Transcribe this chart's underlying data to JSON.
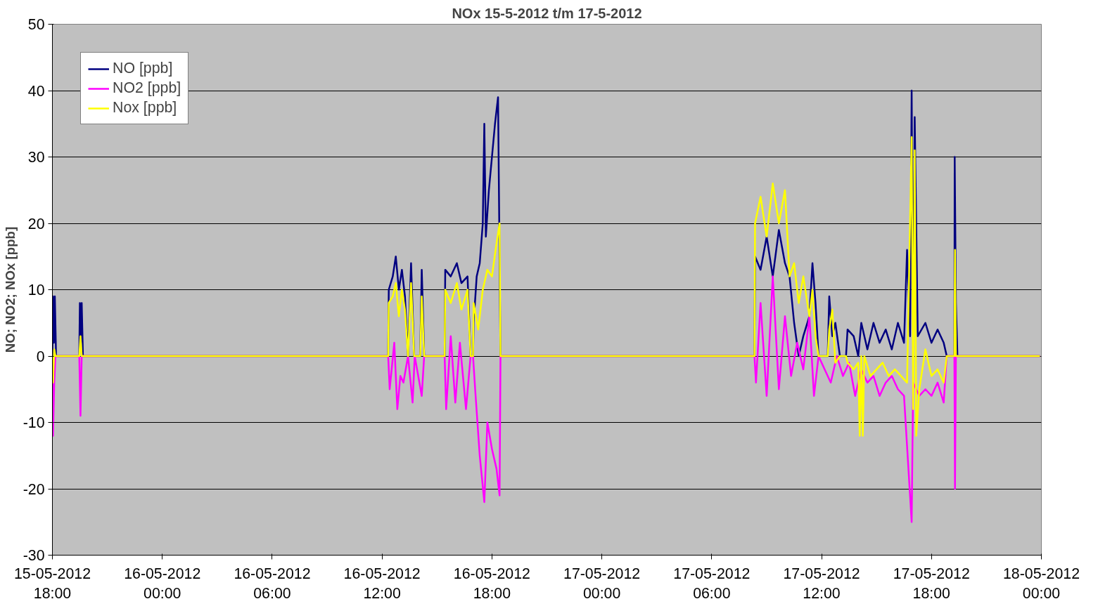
{
  "chart_data": {
    "type": "line",
    "title": "NOx 15-5-2012 t/m 17-5-2012",
    "ylabel": "NO; NO2; NOx [ppb]",
    "xlim": [
      "2012-05-15T18:00",
      "2012-05-18T00:00"
    ],
    "xticks": [
      {
        "value": "2012-05-15T18:00",
        "label": "15-05-2012 18:00"
      },
      {
        "value": "2012-05-16T00:00",
        "label": "16-05-2012 00:00"
      },
      {
        "value": "2012-05-16T06:00",
        "label": "16-05-2012 06:00"
      },
      {
        "value": "2012-05-16T12:00",
        "label": "16-05-2012 12:00"
      },
      {
        "value": "2012-05-16T18:00",
        "label": "16-05-2012 18:00"
      },
      {
        "value": "2012-05-17T00:00",
        "label": "17-05-2012 00:00"
      },
      {
        "value": "2012-05-17T06:00",
        "label": "17-05-2012 06:00"
      },
      {
        "value": "2012-05-17T12:00",
        "label": "17-05-2012 12:00"
      },
      {
        "value": "2012-05-17T18:00",
        "label": "17-05-2012 18:00"
      },
      {
        "value": "2012-05-18T00:00",
        "label": "18-05-2012 00:00"
      }
    ],
    "ylim": [
      -30,
      50
    ],
    "yticks": [
      -30,
      -20,
      -10,
      0,
      10,
      20,
      30,
      40,
      50
    ],
    "grid": "y",
    "legend": "top left",
    "line_style": "solid",
    "marker": "none",
    "series": [
      {
        "name": "NO [ppb]",
        "color": "#000080",
        "x": [
          "2012-05-15T18:00",
          "2012-05-15T18:02",
          "2012-05-15T18:05",
          "2012-05-15T18:08",
          "2012-05-15T18:12",
          "2012-05-15T19:28",
          "2012-05-15T19:30",
          "2012-05-15T19:33",
          "2012-05-15T19:36",
          "2012-05-15T19:40",
          "2012-05-16T12:20",
          "2012-05-16T12:22",
          "2012-05-16T12:35",
          "2012-05-16T12:45",
          "2012-05-16T12:55",
          "2012-05-16T13:05",
          "2012-05-16T13:15",
          "2012-05-16T13:25",
          "2012-05-16T13:35",
          "2012-05-16T13:45",
          "2012-05-16T14:05",
          "2012-05-16T14:10",
          "2012-05-16T14:18",
          "2012-05-16T15:25",
          "2012-05-16T15:27",
          "2012-05-16T15:45",
          "2012-05-16T16:05",
          "2012-05-16T16:20",
          "2012-05-16T16:40",
          "2012-05-16T16:50",
          "2012-05-16T16:58",
          "2012-05-16T17:00",
          "2012-05-16T17:10",
          "2012-05-16T17:20",
          "2012-05-16T17:30",
          "2012-05-16T17:35",
          "2012-05-16T17:40",
          "2012-05-16T17:50",
          "2012-05-16T18:00",
          "2012-05-16T18:10",
          "2012-05-16T18:20",
          "2012-05-16T18:28",
          "2012-05-17T08:20",
          "2012-05-17T08:22",
          "2012-05-17T08:40",
          "2012-05-17T09:00",
          "2012-05-17T09:20",
          "2012-05-17T09:40",
          "2012-05-17T10:00",
          "2012-05-17T10:15",
          "2012-05-17T10:30",
          "2012-05-17T10:45",
          "2012-05-17T11:00",
          "2012-05-17T11:20",
          "2012-05-17T11:30",
          "2012-05-17T11:40",
          "2012-05-17T11:50",
          "2012-05-17T12:20",
          "2012-05-17T12:25",
          "2012-05-17T12:35",
          "2012-05-17T12:45",
          "2012-05-17T13:00",
          "2012-05-17T13:20",
          "2012-05-17T13:25",
          "2012-05-17T13:45",
          "2012-05-17T14:00",
          "2012-05-17T14:10",
          "2012-05-17T14:30",
          "2012-05-17T14:50",
          "2012-05-17T15:10",
          "2012-05-17T15:30",
          "2012-05-17T15:50",
          "2012-05-17T16:10",
          "2012-05-17T16:30",
          "2012-05-17T16:40",
          "2012-05-17T16:50",
          "2012-05-17T16:55",
          "2012-05-17T17:00",
          "2012-05-17T17:05",
          "2012-05-17T17:15",
          "2012-05-17T17:40",
          "2012-05-17T18:00",
          "2012-05-17T18:20",
          "2012-05-17T18:40",
          "2012-05-17T18:50",
          "2012-05-17T19:15",
          "2012-05-17T19:16",
          "2012-05-17T19:20",
          "2012-05-17T19:25",
          "2012-05-17T23:55"
        ],
        "values": [
          0,
          9,
          2,
          9,
          0,
          0,
          8,
          2,
          8,
          0,
          0,
          10,
          12,
          15,
          10,
          13,
          9,
          0,
          14,
          0,
          0,
          13,
          0,
          0,
          13,
          12,
          14,
          11,
          12,
          0,
          0,
          5,
          12,
          14,
          20,
          35,
          18,
          25,
          30,
          35,
          39,
          0,
          0,
          15,
          13,
          18,
          12,
          19,
          14,
          12,
          5,
          0,
          3,
          6,
          14,
          8,
          0,
          0,
          9,
          3,
          5,
          0,
          0,
          4,
          3,
          0,
          5,
          1,
          5,
          2,
          4,
          1,
          5,
          2,
          16,
          3,
          40,
          3,
          36,
          3,
          5,
          2,
          4,
          2,
          0,
          0,
          30,
          8,
          0,
          0
        ]
      },
      {
        "name": "NO2 [ppb]",
        "color": "#ff00ff",
        "x": [
          "2012-05-15T18:00",
          "2012-05-15T18:02",
          "2012-05-15T18:06",
          "2012-05-15T18:10",
          "2012-05-15T19:28",
          "2012-05-15T19:32",
          "2012-05-15T19:36",
          "2012-05-16T12:20",
          "2012-05-16T12:25",
          "2012-05-16T12:40",
          "2012-05-16T12:50",
          "2012-05-16T13:00",
          "2012-05-16T13:10",
          "2012-05-16T13:25",
          "2012-05-16T13:40",
          "2012-05-16T13:47",
          "2012-05-16T14:10",
          "2012-05-16T14:18",
          "2012-05-16T15:25",
          "2012-05-16T15:30",
          "2012-05-16T15:45",
          "2012-05-16T16:00",
          "2012-05-16T16:15",
          "2012-05-16T16:35",
          "2012-05-16T16:50",
          "2012-05-16T16:58",
          "2012-05-16T17:05",
          "2012-05-16T17:20",
          "2012-05-16T17:35",
          "2012-05-16T17:45",
          "2012-05-16T18:00",
          "2012-05-16T18:15",
          "2012-05-16T18:25",
          "2012-05-16T18:28",
          "2012-05-17T08:20",
          "2012-05-17T08:25",
          "2012-05-17T08:40",
          "2012-05-17T09:00",
          "2012-05-17T09:20",
          "2012-05-17T09:40",
          "2012-05-17T10:00",
          "2012-05-17T10:20",
          "2012-05-17T10:40",
          "2012-05-17T11:00",
          "2012-05-17T11:20",
          "2012-05-17T11:35",
          "2012-05-17T11:50",
          "2012-05-17T12:10",
          "2012-05-17T12:30",
          "2012-05-17T12:50",
          "2012-05-17T13:10",
          "2012-05-17T13:30",
          "2012-05-17T13:50",
          "2012-05-17T14:10",
          "2012-05-17T14:30",
          "2012-05-17T14:50",
          "2012-05-17T15:10",
          "2012-05-17T15:30",
          "2012-05-17T15:50",
          "2012-05-17T16:10",
          "2012-05-17T16:30",
          "2012-05-17T16:55",
          "2012-05-17T17:00",
          "2012-05-17T17:20",
          "2012-05-17T17:40",
          "2012-05-17T18:00",
          "2012-05-17T18:20",
          "2012-05-17T18:40",
          "2012-05-17T18:50",
          "2012-05-17T19:15",
          "2012-05-17T19:17",
          "2012-05-17T19:20",
          "2012-05-17T23:55"
        ],
        "values": [
          0,
          -12,
          -4,
          0,
          0,
          -9,
          0,
          0,
          -5,
          2,
          -8,
          -3,
          -4,
          0,
          -7,
          0,
          -6,
          0,
          0,
          -8,
          3,
          -7,
          2,
          -8,
          0,
          0,
          -5,
          -15,
          -22,
          -10,
          -14,
          -17,
          -21,
          0,
          0,
          -4,
          8,
          -6,
          12,
          -5,
          6,
          -3,
          2,
          -2,
          6,
          -6,
          0,
          -2,
          -4,
          0,
          -3,
          -1,
          -6,
          -2,
          -4,
          -3,
          -6,
          -4,
          -3,
          -5,
          -6,
          -25,
          -4,
          -6,
          -5,
          -6,
          -4,
          -7,
          0,
          0,
          -20,
          0,
          0
        ]
      },
      {
        "name": "Nox [ppb]",
        "color": "#ffff00",
        "x": [
          "2012-05-15T18:00",
          "2012-05-15T18:02",
          "2012-05-15T18:06",
          "2012-05-15T18:10",
          "2012-05-15T19:28",
          "2012-05-15T19:32",
          "2012-05-15T19:36",
          "2012-05-16T12:20",
          "2012-05-16T12:22",
          "2012-05-16T12:35",
          "2012-05-16T12:45",
          "2012-05-16T12:55",
          "2012-05-16T13:05",
          "2012-05-16T13:15",
          "2012-05-16T13:25",
          "2012-05-16T13:35",
          "2012-05-16T13:45",
          "2012-05-16T14:05",
          "2012-05-16T14:10",
          "2012-05-16T14:18",
          "2012-05-16T15:25",
          "2012-05-16T15:27",
          "2012-05-16T15:45",
          "2012-05-16T16:05",
          "2012-05-16T16:20",
          "2012-05-16T16:40",
          "2012-05-16T16:50",
          "2012-05-16T16:58",
          "2012-05-16T17:00",
          "2012-05-16T17:15",
          "2012-05-16T17:30",
          "2012-05-16T17:45",
          "2012-05-16T18:00",
          "2012-05-16T18:15",
          "2012-05-16T18:25",
          "2012-05-16T18:28",
          "2012-05-17T08:20",
          "2012-05-17T08:22",
          "2012-05-17T08:40",
          "2012-05-17T09:00",
          "2012-05-17T09:20",
          "2012-05-17T09:40",
          "2012-05-17T10:00",
          "2012-05-17T10:15",
          "2012-05-17T10:30",
          "2012-05-17T10:45",
          "2012-05-17T11:00",
          "2012-05-17T11:20",
          "2012-05-17T11:30",
          "2012-05-17T11:40",
          "2012-05-17T11:50",
          "2012-05-17T12:20",
          "2012-05-17T12:25",
          "2012-05-17T12:35",
          "2012-05-17T12:45",
          "2012-05-17T13:00",
          "2012-05-17T13:20",
          "2012-05-17T13:25",
          "2012-05-17T13:45",
          "2012-05-17T14:00",
          "2012-05-17T14:05",
          "2012-05-17T14:10",
          "2012-05-17T14:15",
          "2012-05-17T14:20",
          "2012-05-17T14:40",
          "2012-05-17T15:00",
          "2012-05-17T15:20",
          "2012-05-17T15:40",
          "2012-05-17T16:00",
          "2012-05-17T16:20",
          "2012-05-17T16:40",
          "2012-05-17T16:55",
          "2012-05-17T17:00",
          "2012-05-17T17:05",
          "2012-05-17T17:10",
          "2012-05-17T17:20",
          "2012-05-17T17:40",
          "2012-05-17T18:00",
          "2012-05-17T18:20",
          "2012-05-17T18:40",
          "2012-05-17T18:50",
          "2012-05-17T19:15",
          "2012-05-17T19:17",
          "2012-05-17T19:20",
          "2012-05-17T23:55"
        ],
        "values": [
          0,
          -4,
          1,
          0,
          0,
          3,
          0,
          0,
          8,
          9,
          11,
          6,
          10,
          7,
          0,
          11,
          0,
          0,
          9,
          0,
          0,
          10,
          8,
          11,
          7,
          10,
          0,
          0,
          8,
          4,
          10,
          13,
          12,
          17,
          20,
          0,
          0,
          20,
          24,
          18,
          26,
          20,
          25,
          12,
          14,
          8,
          12,
          6,
          10,
          3,
          0,
          0,
          4,
          7,
          -1,
          0,
          0,
          -1,
          -2,
          -1,
          -12,
          0,
          -12,
          0,
          -3,
          -2,
          -1,
          -3,
          -2,
          -3,
          -4,
          33,
          -8,
          31,
          -12,
          -5,
          1,
          -3,
          -2,
          -4,
          0,
          0,
          16,
          0,
          0
        ]
      }
    ]
  }
}
